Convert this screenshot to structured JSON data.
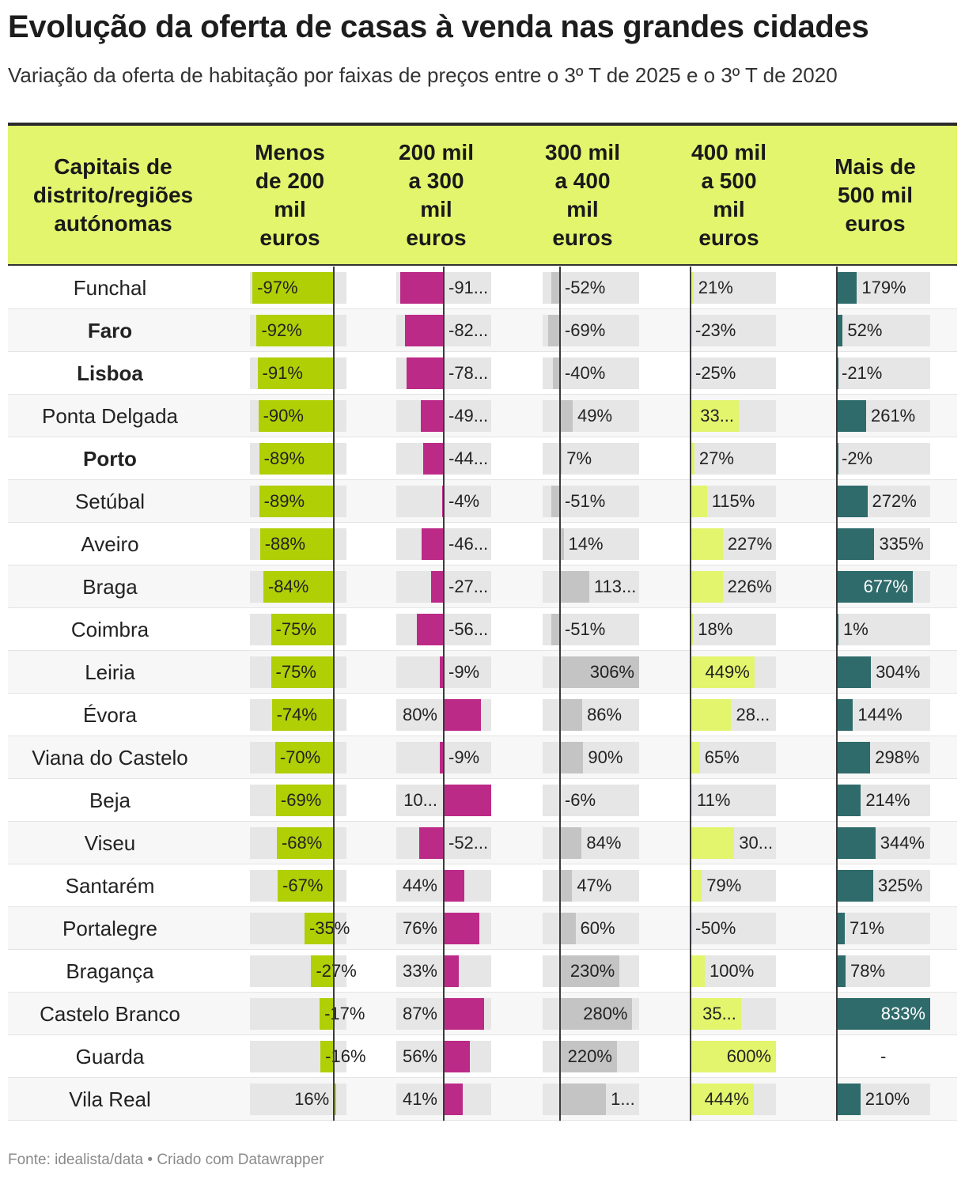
{
  "title": "Evolução da oferta de casas à venda nas grandes cidades",
  "subtitle": "Variação da oferta de habitação por faixas de preços entre o 3º T de 2025 e o 3º T de 2020",
  "footer": "Fonte: idealista/data • Criado com Datawrapper",
  "header": {
    "city_col": [
      "Capitais de",
      "distrito/regiões",
      "autónomas"
    ],
    "columns": [
      [
        "Menos",
        "de 200",
        "mil",
        "euros"
      ],
      [
        "200 mil",
        "a 300",
        "mil",
        "euros"
      ],
      [
        "300 mil",
        "a 400",
        "mil",
        "euros"
      ],
      [
        "400 mil",
        "a 500",
        "mil",
        "euros"
      ],
      [
        "Mais de",
        "500 mil",
        "euros"
      ]
    ]
  },
  "colors": {
    "header_bg": "#e2f56d",
    "series": [
      "#b0cf05",
      "#bc2a87",
      "#c4c4c4",
      "#e2f56d",
      "#2f6b6b"
    ]
  },
  "chart_data": {
    "type": "table",
    "title": "Evolução da oferta de casas à venda nas grandes cidades",
    "subtitle": "Variação da oferta de habitação por faixas de preços entre o 3º T de 2025 e o 3º T de 2020",
    "unit": "%",
    "categories": [
      "Funchal",
      "Faro",
      "Lisboa",
      "Ponta Delgada",
      "Porto",
      "Setúbal",
      "Aveiro",
      "Braga",
      "Coimbra",
      "Leiria",
      "Évora",
      "Viana do Castelo",
      "Beja",
      "Viseu",
      "Santarém",
      "Portalegre",
      "Bragança",
      "Castelo Branco",
      "Guarda",
      "Vila Real"
    ],
    "bold_categories": [
      "Faro",
      "Lisboa",
      "Porto"
    ],
    "series": [
      {
        "name": "Menos de 200 mil euros",
        "values": [
          -97,
          -92,
          -91,
          -90,
          -89,
          -89,
          -88,
          -84,
          -75,
          -75,
          -74,
          -70,
          -69,
          -68,
          -67,
          -35,
          -27,
          -17,
          -16,
          16
        ]
      },
      {
        "name": "200 mil a 300 mil euros",
        "values": [
          -91,
          -82,
          -78,
          -49,
          -44,
          -4,
          -46,
          -27,
          -56,
          -9,
          80,
          -9,
          102,
          -52,
          44,
          76,
          33,
          87,
          56,
          41
        ]
      },
      {
        "name": "300 mil a 400 mil euros",
        "values": [
          -52,
          -69,
          -40,
          49,
          7,
          -51,
          14,
          113,
          -51,
          306,
          86,
          90,
          -6,
          84,
          47,
          60,
          230,
          280,
          220,
          178
        ]
      },
      {
        "name": "400 mil a 500 mil euros",
        "values": [
          21,
          -23,
          -25,
          339,
          27,
          115,
          227,
          226,
          18,
          449,
          286,
          65,
          11,
          307,
          79,
          -50,
          100,
          355,
          600,
          444
        ]
      },
      {
        "name": "Mais de 500 mil euros",
        "values": [
          179,
          52,
          -21,
          261,
          -2,
          272,
          335,
          677,
          1,
          304,
          144,
          298,
          214,
          344,
          325,
          71,
          78,
          833,
          null,
          210
        ]
      }
    ],
    "display_labels": [
      [
        "-97%",
        "-92%",
        "-91%",
        "-90%",
        "-89%",
        "-89%",
        "-88%",
        "-84%",
        "-75%",
        "-75%",
        "-74%",
        "-70%",
        "-69%",
        "-68%",
        "-67%",
        "-35%",
        "-27%",
        "-17%",
        "-16%",
        "16%"
      ],
      [
        "-91...",
        "-82...",
        "-78...",
        "-49...",
        "-44...",
        "-4%",
        "-46...",
        "-27...",
        "-56...",
        "-9%",
        "80%",
        "-9%",
        "10...",
        "-52...",
        "44%",
        "76%",
        "33%",
        "87%",
        "56%",
        "41%"
      ],
      [
        "-52%",
        "-69%",
        "-40%",
        "49%",
        "7%",
        "-51%",
        "14%",
        "113...",
        "-51%",
        "306%",
        "86%",
        "90%",
        "-6%",
        "84%",
        "47%",
        "60%",
        "230%",
        "280%",
        "220%",
        "1..."
      ],
      [
        "21%",
        "-23%",
        "-25%",
        "33...",
        "27%",
        "115%",
        "227%",
        "226%",
        "18%",
        "449%",
        "28...",
        "65%",
        "11%",
        "30...",
        "79%",
        "-50%",
        "100%",
        "35...",
        "600%",
        "444%"
      ],
      [
        "179%",
        "52%",
        "-21%",
        "261%",
        "-2%",
        "272%",
        "335%",
        "677%",
        "1%",
        "304%",
        "144%",
        "298%",
        "214%",
        "344%",
        "325%",
        "71%",
        "78%",
        "833%",
        "-",
        "210%"
      ]
    ]
  }
}
